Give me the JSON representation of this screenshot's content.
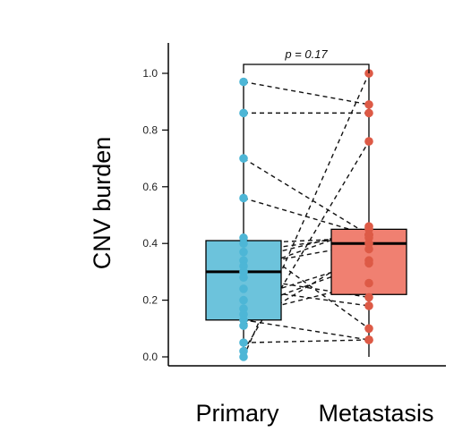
{
  "chart_data": {
    "type": "boxplot",
    "ylabel": "CNV burden",
    "ylim": [
      0,
      1
    ],
    "yticks": [
      "0.0",
      "0.2",
      "0.4",
      "0.6",
      "0.8",
      "1.0"
    ],
    "categories": [
      "Primary",
      "Metastasis"
    ],
    "colors": {
      "Primary": "#6cc3dc",
      "Metastasis": "#f08071",
      "Primary_point": "#4db6d6",
      "Metastasis_point": "#dd5a46"
    },
    "annotation": {
      "text": "p = 0.17",
      "from": "Primary",
      "to": "Metastasis"
    },
    "boxes": [
      {
        "name": "Primary",
        "q1": 0.13,
        "median": 0.3,
        "q3": 0.41,
        "whisker_low": 0.0,
        "whisker_high": 0.97
      },
      {
        "name": "Metastasis",
        "q1": 0.22,
        "median": 0.4,
        "q3": 0.45,
        "whisker_low": 0.0,
        "whisker_high": 1.0
      }
    ],
    "pairs": [
      [
        0.97,
        0.89
      ],
      [
        0.86,
        0.86
      ],
      [
        0.7,
        0.43
      ],
      [
        0.56,
        0.43
      ],
      [
        0.42,
        0.1
      ],
      [
        0.4,
        0.42
      ],
      [
        0.37,
        0.43
      ],
      [
        0.34,
        0.45
      ],
      [
        0.32,
        0.4
      ],
      [
        0.3,
        0.46
      ],
      [
        0.28,
        0.21
      ],
      [
        0.24,
        0.18
      ],
      [
        0.2,
        0.34
      ],
      [
        0.17,
        0.33
      ],
      [
        0.15,
        0.26
      ],
      [
        0.13,
        0.06
      ],
      [
        0.11,
        0.38
      ],
      [
        0.05,
        0.06
      ],
      [
        0.02,
        0.76
      ],
      [
        0.0,
        1.0
      ]
    ]
  }
}
